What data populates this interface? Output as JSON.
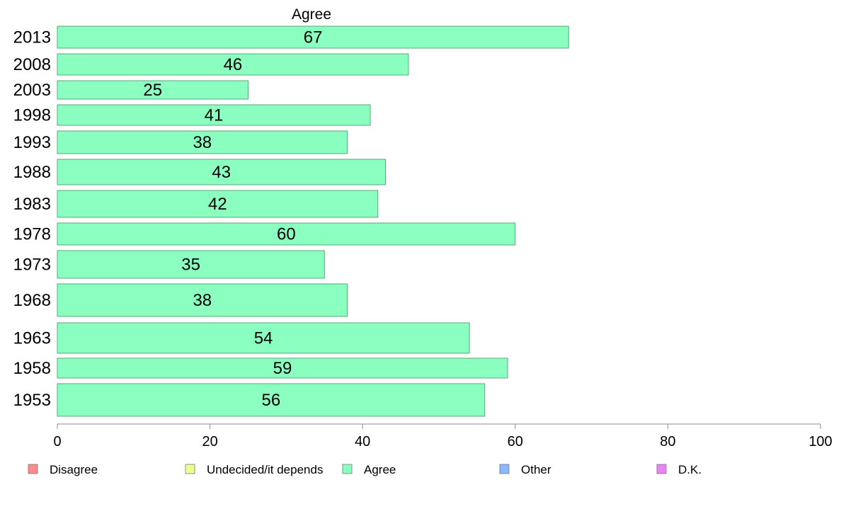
{
  "chart_data": {
    "type": "bar",
    "orientation": "horizontal",
    "title": "Agree",
    "xlabel": "",
    "ylabel": "",
    "xlim": [
      0,
      100
    ],
    "xticks": [
      0,
      20,
      40,
      60,
      80,
      100
    ],
    "grid": false,
    "legend_position": "bottom",
    "categories": [
      "2013",
      "2008",
      "2003",
      "1998",
      "1993",
      "1988",
      "1983",
      "1978",
      "1973",
      "1968",
      "1963",
      "1958",
      "1953"
    ],
    "series": [
      {
        "name": "Agree",
        "color": "#8bffc0",
        "values": [
          67,
          46,
          25,
          41,
          38,
          43,
          42,
          60,
          35,
          38,
          54,
          59,
          56
        ]
      }
    ],
    "legend": [
      {
        "label": "Disagree",
        "color": "#ff8a8a"
      },
      {
        "label": "Undecided/it depends",
        "color": "#efff8f"
      },
      {
        "label": "Agree",
        "color": "#8bffc0"
      },
      {
        "label": "Other",
        "color": "#8ab8ff"
      },
      {
        "label": "D.K.",
        "color": "#ee80f8"
      }
    ]
  }
}
